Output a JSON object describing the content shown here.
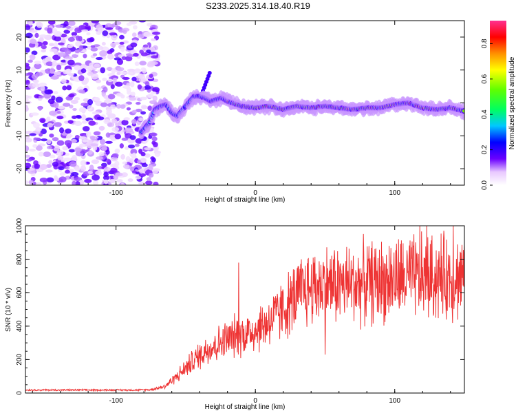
{
  "title": "S233.2025.314.18.40.R19",
  "chart_data": [
    {
      "type": "heatmap",
      "name": "spectrogram",
      "xlabel": "Height of straight line (km)",
      "ylabel": "Frequency (Hz)",
      "xlim": [
        -165,
        150
      ],
      "ylim": [
        -25,
        25
      ],
      "xticks": [
        -100,
        0,
        100
      ],
      "yticks": [
        -20,
        -10,
        0,
        10,
        20
      ],
      "grid": false,
      "ridge": {
        "x": [
          -80,
          -76,
          -72,
          -68,
          -64,
          -60,
          -56,
          -52,
          -48,
          -44,
          -40,
          -36,
          -32,
          -28,
          -24,
          -20,
          -10,
          0,
          10,
          20,
          30,
          40,
          50,
          60,
          70,
          80,
          90,
          100,
          110,
          120,
          130,
          140,
          150
        ],
        "y": [
          -8,
          -6,
          -2,
          -1,
          -0.5,
          -3,
          -4,
          -2,
          0,
          2,
          2,
          1.5,
          0.5,
          1,
          1.5,
          0.5,
          -1,
          -1.5,
          -1,
          -2,
          -1,
          -1.5,
          -1,
          -1.5,
          -2,
          -1.5,
          -1.5,
          -0.5,
          0,
          -1.5,
          -2,
          -1.5,
          -2.5
        ]
      },
      "colorbar": {
        "label": "Normalized spectral amplitude",
        "ticks": [
          "0.0",
          "0.2",
          "0.4",
          "0.6",
          "0.8"
        ],
        "range": [
          0,
          0.93
        ]
      }
    },
    {
      "type": "line",
      "name": "snr",
      "xlabel": "Height of straight line (km)",
      "ylabel": "SNR (10 * v/v)",
      "xlim": [
        -165,
        150
      ],
      "ylim": [
        0,
        1000
      ],
      "xticks": [
        -100,
        0,
        100
      ],
      "yticks": [
        0,
        200,
        400,
        600,
        800,
        1000
      ],
      "series": [
        {
          "name": "SNR",
          "color": "#ee3333",
          "x": [
            -165,
            -150,
            -120,
            -100,
            -85,
            -75,
            -65,
            -55,
            -45,
            -35,
            -25,
            -15,
            -5,
            5,
            15,
            25,
            35,
            50,
            65,
            80,
            100,
            115,
            130,
            150
          ],
          "y": [
            18,
            18,
            18,
            18,
            18,
            20,
            40,
            110,
            190,
            260,
            300,
            340,
            360,
            400,
            460,
            540,
            620,
            650,
            650,
            660,
            680,
            690,
            690,
            700
          ]
        }
      ],
      "spikes": [
        {
          "x": -12,
          "y": 780
        },
        {
          "x": 123,
          "y": 1000
        },
        {
          "x": 118,
          "y": 1000
        },
        {
          "x": 142,
          "y": 1000
        },
        {
          "x": 50,
          "y": 230
        }
      ]
    }
  ]
}
